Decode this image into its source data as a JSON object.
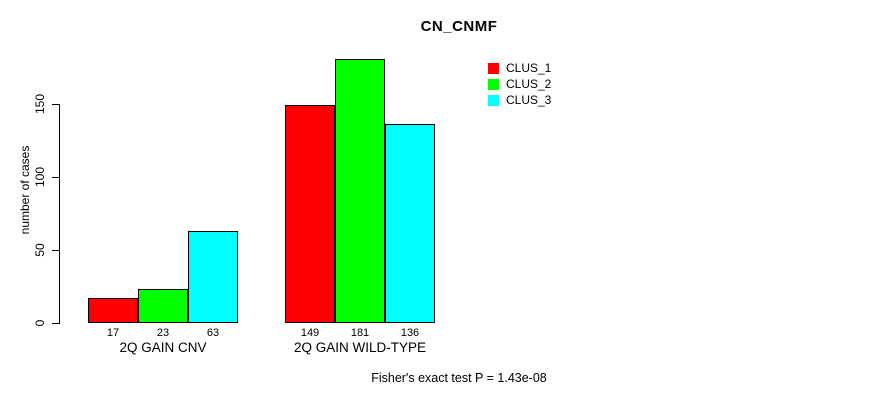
{
  "chart_data": {
    "type": "bar",
    "title": "CN_CNMF",
    "ylabel": "number of cases",
    "yticks": [
      0,
      50,
      100,
      150
    ],
    "ylim": [
      0,
      185
    ],
    "grid": false,
    "legend_position": "top-right",
    "categories": [
      "2Q GAIN CNV",
      "2Q GAIN WILD-TYPE"
    ],
    "series": [
      {
        "name": "CLUS_1",
        "color": "#ff0000",
        "values": [
          17,
          149
        ]
      },
      {
        "name": "CLUS_2",
        "color": "#00ff00",
        "values": [
          23,
          181
        ]
      },
      {
        "name": "CLUS_3",
        "color": "#00ffff",
        "values": [
          63,
          136
        ]
      }
    ],
    "bar_value_labels": [
      [
        17,
        23,
        63
      ],
      [
        149,
        181,
        136
      ]
    ],
    "annotation": "Fisher's exact test P = 1.43e-08"
  }
}
